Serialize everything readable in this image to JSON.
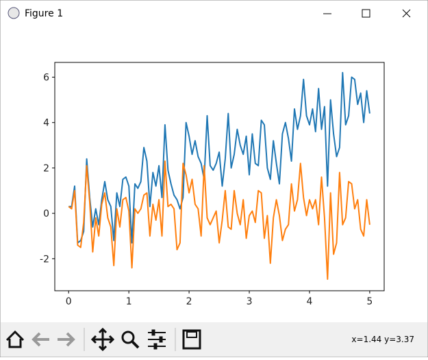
{
  "window": {
    "title": "Figure 1",
    "status": "x=1.44 y=3.37"
  },
  "chart_data": {
    "type": "line",
    "x": [
      0,
      0.05,
      0.1,
      0.15,
      0.2,
      0.25,
      0.3,
      0.35,
      0.4,
      0.45,
      0.5,
      0.55,
      0.6,
      0.65,
      0.7,
      0.75,
      0.8,
      0.85,
      0.9,
      0.95,
      1,
      1.05,
      1.1,
      1.15,
      1.2,
      1.25,
      1.3,
      1.35,
      1.4,
      1.45,
      1.5,
      1.55,
      1.6,
      1.65,
      1.7,
      1.75,
      1.8,
      1.85,
      1.9,
      1.95,
      2,
      2.05,
      2.1,
      2.15,
      2.2,
      2.25,
      2.3,
      2.35,
      2.4,
      2.45,
      2.5,
      2.55,
      2.6,
      2.65,
      2.7,
      2.75,
      2.8,
      2.85,
      2.9,
      2.95,
      3,
      3.05,
      3.1,
      3.15,
      3.2,
      3.25,
      3.3,
      3.35,
      3.4,
      3.45,
      3.5,
      3.55,
      3.6,
      3.65,
      3.7,
      3.75,
      3.8,
      3.85,
      3.9,
      3.95,
      4,
      4.05,
      4.1,
      4.15,
      4.2,
      4.25,
      4.3,
      4.35,
      4.4,
      4.45,
      4.5,
      4.55,
      4.6,
      4.65,
      4.7,
      4.75,
      4.8,
      4.85,
      4.9,
      4.95,
      5
    ],
    "series": [
      {
        "color": "#1f77b4",
        "values": [
          0.3,
          0.3,
          1.2,
          -1.3,
          -1.2,
          -0.8,
          2.4,
          0.7,
          -0.6,
          0.2,
          -0.5,
          0.6,
          1.4,
          0.6,
          0.3,
          -1.2,
          0.9,
          0.3,
          1.5,
          1.6,
          1.2,
          -1.3,
          1.3,
          1.1,
          1.4,
          2.9,
          2.3,
          0.3,
          1.8,
          1.2,
          2.1,
          0.7,
          3.9,
          1.9,
          1.3,
          0.8,
          0.6,
          0.2,
          0.7,
          4.0,
          3.4,
          2.6,
          3.2,
          2.5,
          2.2,
          1.5,
          4.3,
          2.1,
          1.9,
          2.2,
          2.7,
          1.2,
          2.4,
          4.4,
          2.0,
          2.6,
          3.7,
          3.0,
          2.6,
          3.4,
          1.7,
          3.5,
          2.2,
          2.1,
          4.1,
          3.9,
          2.0,
          1.5,
          3.2,
          2.2,
          1.3,
          3.5,
          4.0,
          3.3,
          2.3,
          4.6,
          3.7,
          4.3,
          5.9,
          4.3,
          3.9,
          4.6,
          3.6,
          5.5,
          3.7,
          4.7,
          1.2,
          5.0,
          3.5,
          2.5,
          2.9,
          6.2,
          3.9,
          4.3,
          6.0,
          5.9,
          4.8,
          5.3,
          4.0,
          5.4,
          4.4
        ]
      },
      {
        "color": "#ff7f0e",
        "values": [
          0.3,
          0.2,
          1.0,
          -1.4,
          -1.5,
          -0.4,
          2.1,
          0.5,
          -1.7,
          -0.2,
          -1.0,
          0.4,
          0.9,
          -0.2,
          -0.6,
          -2.3,
          0.2,
          -0.6,
          0.6,
          0.7,
          0.1,
          -2.4,
          0.2,
          0.0,
          0.2,
          0.8,
          0.9,
          -1.0,
          0.4,
          -0.3,
          0.6,
          -1.0,
          2.3,
          0.3,
          0.4,
          0.2,
          -1.6,
          -1.3,
          2.2,
          1.7,
          0.9,
          1.5,
          0.4,
          0.2,
          -1.0,
          2.1,
          -0.2,
          -0.5,
          -0.2,
          0.1,
          -1.3,
          -0.3,
          1.0,
          -0.6,
          -0.7,
          1.0,
          0.0,
          -0.5,
          0.6,
          -1.1,
          -0.1,
          0.1,
          -0.4,
          1.0,
          0.9,
          -1.1,
          -0.1,
          -2.2,
          -0.2,
          0.6,
          -0.1,
          -1.2,
          -0.7,
          -0.5,
          1.3,
          0.1,
          0.6,
          2.2,
          0.7,
          -0.1,
          0.6,
          0.2,
          0.6,
          -0.5,
          1.6,
          -0.2,
          -2.9,
          0.9,
          -1.8,
          -1.3,
          1.8,
          -0.5,
          -0.2,
          1.4,
          1.3,
          0.2,
          0.6,
          -0.7,
          -1.0,
          0.6,
          -0.5
        ]
      }
    ],
    "xlim": [
      -0.23,
      5.24
    ],
    "ylim": [
      -3.41,
      6.65
    ],
    "xticks": [
      0,
      1,
      2,
      3,
      4,
      5
    ],
    "yticks": [
      -2,
      0,
      2,
      4,
      6
    ]
  }
}
